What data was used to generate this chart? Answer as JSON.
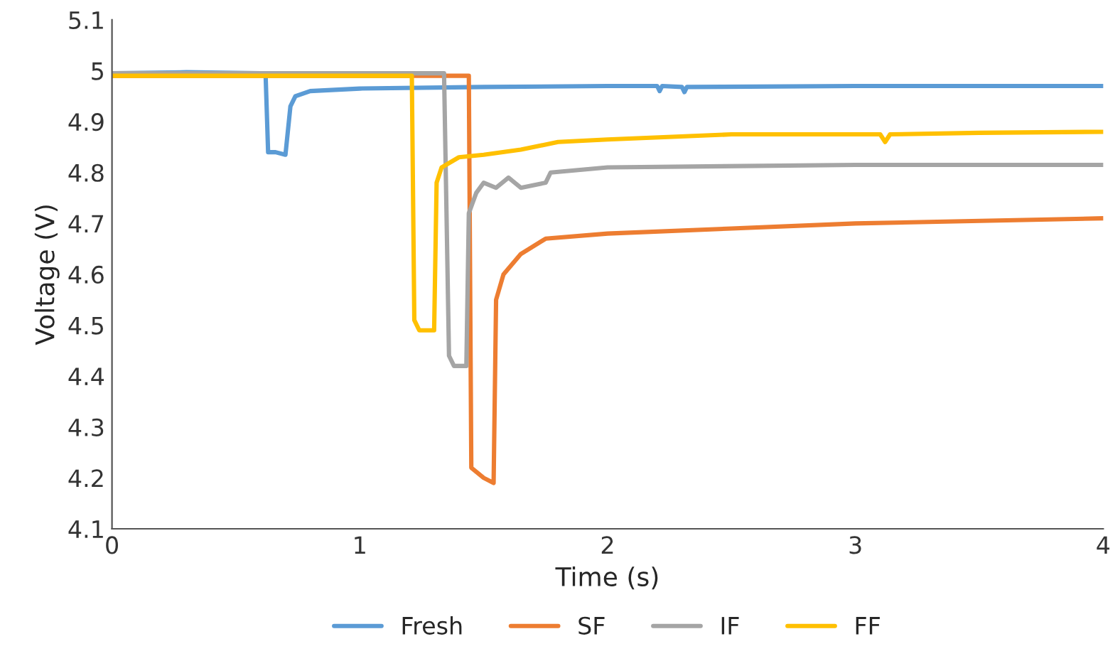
{
  "chart_data": {
    "type": "line",
    "xlabel": "Time (s)",
    "ylabel": "Voltage (V)",
    "xlim": [
      0,
      4
    ],
    "xticks": [
      0,
      1,
      2,
      3,
      4
    ],
    "ylim": [
      4.1,
      5.1
    ],
    "yticks": [
      4.1,
      4.2,
      4.3,
      4.4,
      4.5,
      4.6,
      4.7,
      4.8,
      4.9,
      5,
      5.1
    ],
    "grid": false,
    "legend": "bottom",
    "marker": "none",
    "line_style": "solid",
    "series": [
      {
        "name": "Fresh",
        "color": "#5b9bd5",
        "x": [
          0,
          0.3,
          0.6,
          0.62,
          0.63,
          0.66,
          0.7,
          0.72,
          0.74,
          0.8,
          1.0,
          1.5,
          2.0,
          2.2,
          2.21,
          2.22,
          2.3,
          2.31,
          2.32,
          3.0,
          4.0
        ],
        "values": [
          4.995,
          4.997,
          4.995,
          4.99,
          4.84,
          4.84,
          4.835,
          4.93,
          4.95,
          4.96,
          4.965,
          4.968,
          4.97,
          4.97,
          4.96,
          4.97,
          4.968,
          4.958,
          4.968,
          4.97,
          4.97
        ]
      },
      {
        "name": "SF",
        "color": "#ed7d31",
        "x": [
          0,
          1.0,
          1.44,
          1.45,
          1.5,
          1.54,
          1.55,
          1.58,
          1.65,
          1.75,
          2.0,
          2.5,
          3.0,
          4.0
        ],
        "values": [
          4.99,
          4.99,
          4.99,
          4.22,
          4.2,
          4.19,
          4.55,
          4.6,
          4.64,
          4.67,
          4.68,
          4.69,
          4.7,
          4.71
        ]
      },
      {
        "name": "IF",
        "color": "#a5a5a5",
        "x": [
          0,
          1.0,
          1.34,
          1.36,
          1.38,
          1.43,
          1.44,
          1.47,
          1.5,
          1.55,
          1.6,
          1.65,
          1.75,
          1.77,
          2.0,
          3.0,
          4.0
        ],
        "values": [
          4.995,
          4.995,
          4.995,
          4.44,
          4.42,
          4.42,
          4.72,
          4.76,
          4.78,
          4.77,
          4.79,
          4.77,
          4.78,
          4.8,
          4.81,
          4.815,
          4.815
        ]
      },
      {
        "name": "FF",
        "color": "#ffc000",
        "x": [
          0,
          1.0,
          1.21,
          1.22,
          1.24,
          1.3,
          1.31,
          1.33,
          1.4,
          1.5,
          1.65,
          1.8,
          2.0,
          2.5,
          3.1,
          3.12,
          3.14,
          3.5,
          4.0
        ],
        "values": [
          4.99,
          4.99,
          4.99,
          4.51,
          4.49,
          4.49,
          4.78,
          4.81,
          4.83,
          4.835,
          4.845,
          4.86,
          4.865,
          4.875,
          4.875,
          4.86,
          4.875,
          4.878,
          4.88
        ]
      }
    ]
  }
}
